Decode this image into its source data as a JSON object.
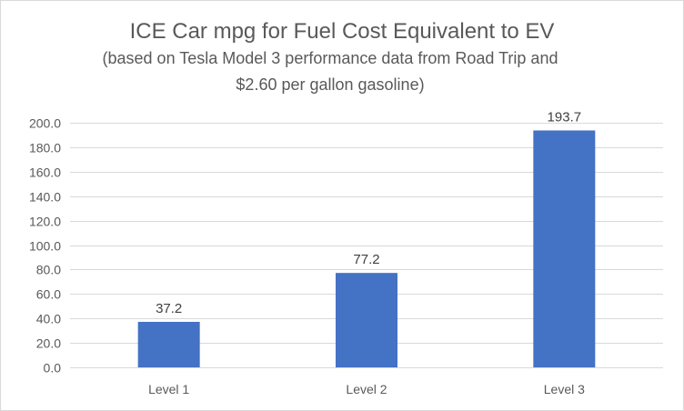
{
  "chart_data": {
    "type": "bar",
    "title": "ICE Car mpg for Fuel Cost Equivalent to EV",
    "subtitle_lines": [
      "(based on Tesla Model 3 performance data from Road Trip and",
      "$2.60 per gallon gasoline)"
    ],
    "categories": [
      "Level 1",
      "Level 2",
      "Level 3"
    ],
    "values": [
      37.2,
      77.2,
      193.7
    ],
    "value_labels": [
      "37.2",
      "77.2",
      "193.7"
    ],
    "xlabel": "",
    "ylabel": "",
    "ylim": [
      0,
      200
    ],
    "yticks": [
      0,
      20,
      40,
      60,
      80,
      100,
      120,
      140,
      160,
      180,
      200
    ],
    "ytick_labels": [
      "0.0",
      "20.0",
      "40.0",
      "60.0",
      "80.0",
      "100.0",
      "120.0",
      "140.0",
      "160.0",
      "180.0",
      "200.0"
    ],
    "grid": true,
    "legend": "none",
    "bar_color": "#4472c4"
  }
}
